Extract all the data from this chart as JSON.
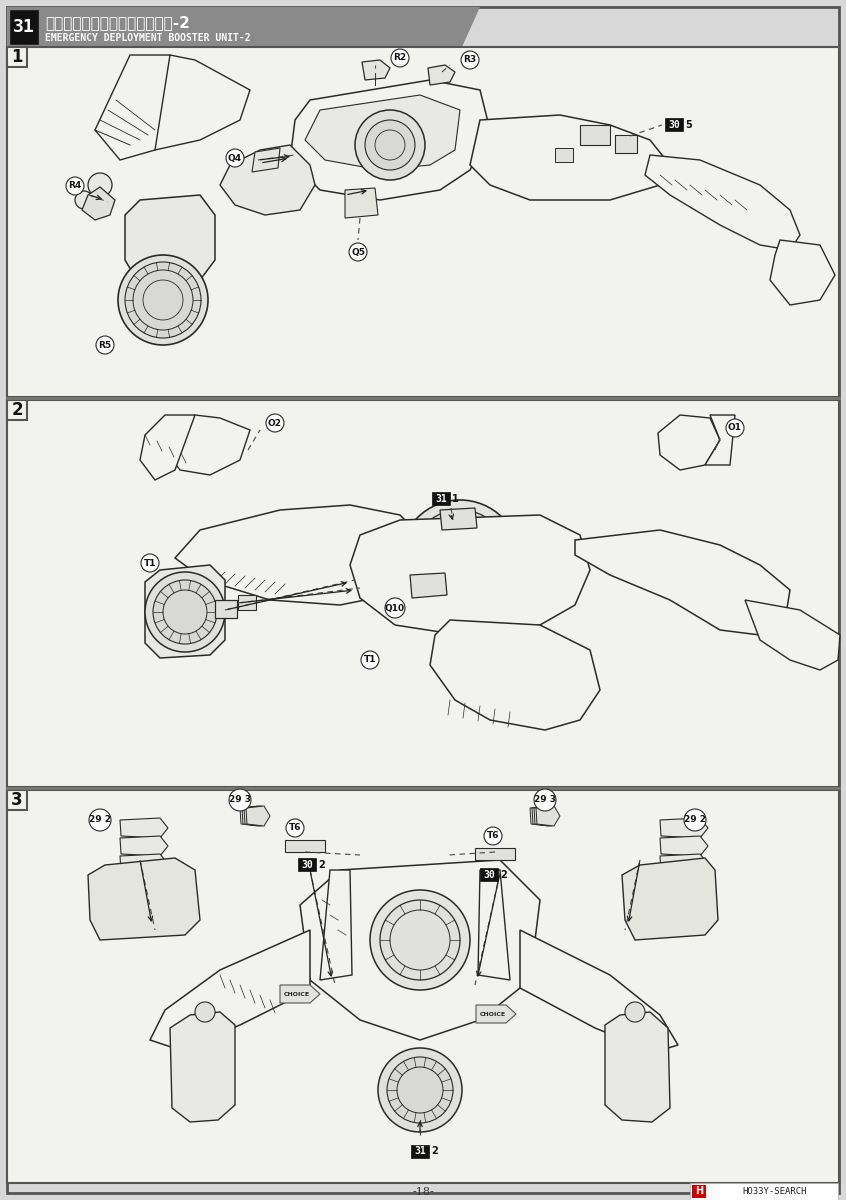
{
  "page_number": "-18-",
  "bg_color": "#d8d8d8",
  "panel_bg": "#f2f2ee",
  "border_color": "#666666",
  "header_bg": "#909090",
  "header_text_color": "#ffffff",
  "header_number": "31",
  "header_title_jp": "紧急展開ブースターの組み立て-2",
  "header_title_en": "EMERGENCY DEPLOYMENT BOOSTER UNIT-2",
  "hobby_search_color": "#cc0000",
  "line_color": "#2a2a2a",
  "line_color_light": "#555555",
  "white": "#ffffff",
  "black": "#111111"
}
